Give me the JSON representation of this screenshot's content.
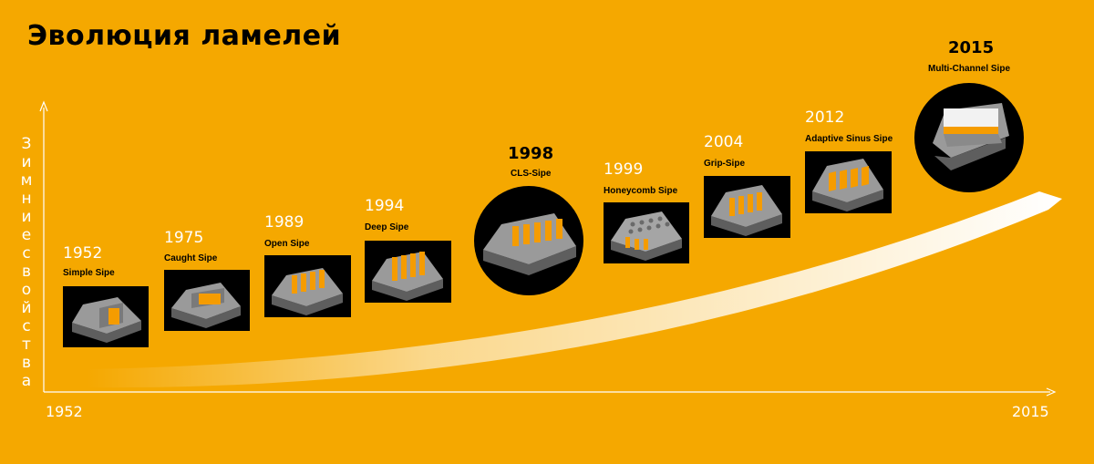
{
  "title": "Эволюция ламелей",
  "y_axis_label": "Зимние свойства",
  "x_axis": {
    "start": "1952",
    "end": "2015"
  },
  "milestones": [
    {
      "year": "1952",
      "name": "Simple Sipe"
    },
    {
      "year": "1975",
      "name": "Caught Sipe"
    },
    {
      "year": "1989",
      "name": "Open Sipe"
    },
    {
      "year": "1994",
      "name": "Deep Sipe"
    },
    {
      "year": "1998",
      "name": "CLS-Sipe"
    },
    {
      "year": "1999",
      "name": "Honeycomb Sipe"
    },
    {
      "year": "2004",
      "name": "Grip-Sipe"
    },
    {
      "year": "2012",
      "name": "Adaptive Sinus Sipe"
    },
    {
      "year": "2015",
      "name": "Multi-Channel Sipe"
    }
  ],
  "colors": {
    "background": "#f5a800",
    "panel": "#000000",
    "accent": "#f59c00",
    "block": "#8a8a8a"
  }
}
